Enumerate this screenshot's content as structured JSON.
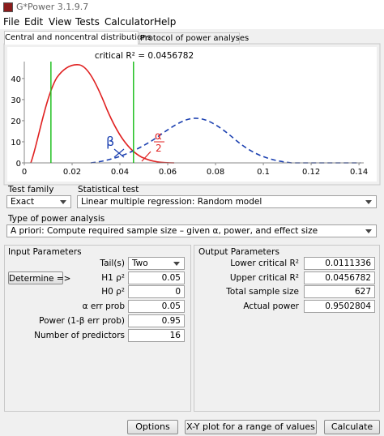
{
  "window": {
    "title": "G*Power 3.1.9.7"
  },
  "menu": [
    "File",
    "Edit",
    "View",
    "Tests",
    "Calculator",
    "Help"
  ],
  "tabs": [
    "Central and noncentral distributions",
    "Protocol of power analyses"
  ],
  "plot": {
    "caption": "critical R² = 0.0456782",
    "xlim": [
      0,
      0.142
    ],
    "ylim": [
      0,
      48
    ],
    "xticks": [
      0,
      0.02,
      0.04,
      0.06,
      0.08,
      0.1,
      0.12,
      0.14
    ],
    "yticks": [
      0,
      10,
      20,
      30,
      40
    ],
    "annotations": [
      "β",
      "α",
      "2"
    ]
  },
  "test_family": {
    "label": "Test family",
    "value": "Exact"
  },
  "statistical_test": {
    "label": "Statistical test",
    "value": "Linear multiple regression: Random model"
  },
  "analysis_type": {
    "label": "Type of power analysis",
    "value": "A priori: Compute required sample size – given α, power, and effect size"
  },
  "input": {
    "title": "Input Parameters",
    "determine": "Determine =>",
    "rows": [
      {
        "label": "Tail(s)",
        "value": "Two"
      },
      {
        "label": "H1 ρ²",
        "value": 0.05
      },
      {
        "label": "H0 ρ²",
        "value": 0
      },
      {
        "label": "α err prob",
        "value": 0.05
      },
      {
        "label": "Power (1-β err prob)",
        "value": 0.95
      },
      {
        "label": "Number of predictors",
        "value": 16
      }
    ]
  },
  "output": {
    "title": "Output Parameters",
    "rows": [
      {
        "label": "Lower critical R²",
        "value": 0.0111336
      },
      {
        "label": "Upper critical R²",
        "value": 0.0456782
      },
      {
        "label": "Total sample size",
        "value": 627
      },
      {
        "label": "Actual power",
        "value": 0.9502804
      }
    ]
  },
  "buttons": [
    "Options",
    "X-Y plot for a range of values",
    "Calculate"
  ]
}
